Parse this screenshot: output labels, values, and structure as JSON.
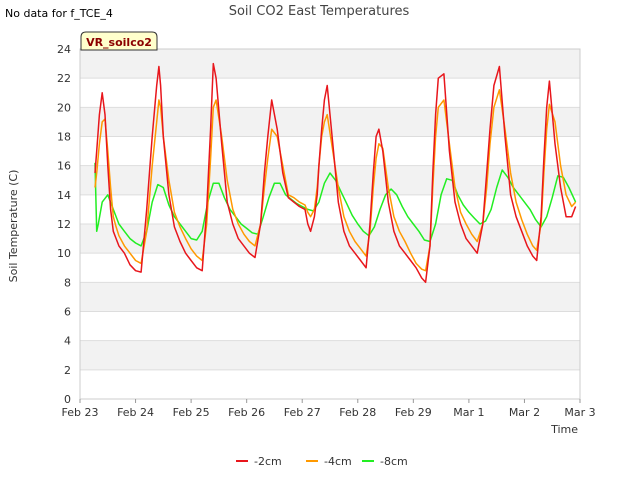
{
  "header": {
    "no_data_note": "No data for f_TCE_4"
  },
  "station_badge": "VR_soilco2",
  "chart_data": {
    "type": "line",
    "title": "Soil CO2 East Temperatures",
    "xlabel": "Time",
    "ylabel": "Soil Temperature (C)",
    "xlim": [
      0,
      9
    ],
    "ylim": [
      0,
      24
    ],
    "yticks": [
      0,
      2,
      4,
      6,
      8,
      10,
      12,
      14,
      16,
      18,
      20,
      22,
      24
    ],
    "xticks": [
      {
        "x": 0,
        "label": "Feb 23"
      },
      {
        "x": 1,
        "label": "Feb 24"
      },
      {
        "x": 2,
        "label": "Feb 25"
      },
      {
        "x": 3,
        "label": "Feb 26"
      },
      {
        "x": 4,
        "label": "Feb 27"
      },
      {
        "x": 5,
        "label": "Feb 28"
      },
      {
        "x": 6,
        "label": "Feb 29"
      },
      {
        "x": 7,
        "label": "Mar 1"
      },
      {
        "x": 8,
        "label": "Mar 2"
      },
      {
        "x": 9,
        "label": "Mar 3"
      }
    ],
    "grid": true,
    "legend_position": "bottom",
    "series": [
      {
        "name": "-2cm",
        "color": "#e8161c",
        "x": [
          0.27,
          0.3,
          0.35,
          0.4,
          0.45,
          0.5,
          0.55,
          0.6,
          0.65,
          0.7,
          0.8,
          0.9,
          1.0,
          1.1,
          1.2,
          1.3,
          1.38,
          1.42,
          1.45,
          1.5,
          1.6,
          1.7,
          1.8,
          1.9,
          2.0,
          2.1,
          2.2,
          2.28,
          2.35,
          2.4,
          2.45,
          2.55,
          2.65,
          2.75,
          2.85,
          2.95,
          3.05,
          3.15,
          3.25,
          3.32,
          3.38,
          3.45,
          3.55,
          3.65,
          3.75,
          3.85,
          3.95,
          4.05,
          4.1,
          4.15,
          4.22,
          4.27,
          4.3,
          4.35,
          4.4,
          4.45,
          4.55,
          4.65,
          4.75,
          4.85,
          4.95,
          5.05,
          5.15,
          5.22,
          5.28,
          5.33,
          5.38,
          5.45,
          5.55,
          5.65,
          5.75,
          5.85,
          5.95,
          6.05,
          6.15,
          6.22,
          6.3,
          6.35,
          6.4,
          6.45,
          6.55,
          6.65,
          6.75,
          6.85,
          6.95,
          7.05,
          7.15,
          7.25,
          7.32,
          7.38,
          7.45,
          7.55,
          7.65,
          7.75,
          7.85,
          7.95,
          8.05,
          8.15,
          8.22,
          8.3,
          8.35,
          8.4,
          8.45,
          8.55,
          8.65,
          8.75,
          8.85,
          8.92
        ],
        "values": [
          15.5,
          17.0,
          19.5,
          21.0,
          19.5,
          16.0,
          13.0,
          11.5,
          11.0,
          10.5,
          10.0,
          9.2,
          8.8,
          8.7,
          13.0,
          18.0,
          21.5,
          22.8,
          21.5,
          18.0,
          14.0,
          11.8,
          10.8,
          10.0,
          9.5,
          9.0,
          8.8,
          13.0,
          18.5,
          23.0,
          22.0,
          17.5,
          13.5,
          12.0,
          11.0,
          10.5,
          10.0,
          9.7,
          12.0,
          15.5,
          18.0,
          20.5,
          18.5,
          15.5,
          13.8,
          13.5,
          13.2,
          13.0,
          12.0,
          11.5,
          12.5,
          14.0,
          16.0,
          18.5,
          20.5,
          21.5,
          17.5,
          13.5,
          11.5,
          10.5,
          10.0,
          9.5,
          9.0,
          12.0,
          15.5,
          18.0,
          18.5,
          17.0,
          13.5,
          11.5,
          10.5,
          10.0,
          9.5,
          9.0,
          8.3,
          8.0,
          10.5,
          15.5,
          19.5,
          22.0,
          22.3,
          17.0,
          13.5,
          12.0,
          11.0,
          10.5,
          10.0,
          12.0,
          15.5,
          18.5,
          21.5,
          22.8,
          18.0,
          14.0,
          12.5,
          11.5,
          10.5,
          9.8,
          9.5,
          12.5,
          16.5,
          20.0,
          21.8,
          17.5,
          14.5,
          12.5,
          12.5,
          13.2
        ]
      },
      {
        "name": "-4cm",
        "color": "#ff9900",
        "x": [
          0.27,
          0.3,
          0.35,
          0.4,
          0.45,
          0.5,
          0.55,
          0.6,
          0.65,
          0.7,
          0.8,
          0.9,
          1.0,
          1.1,
          1.2,
          1.3,
          1.38,
          1.42,
          1.45,
          1.5,
          1.6,
          1.7,
          1.8,
          1.9,
          2.0,
          2.1,
          2.2,
          2.28,
          2.35,
          2.4,
          2.45,
          2.55,
          2.65,
          2.75,
          2.85,
          2.95,
          3.05,
          3.15,
          3.25,
          3.32,
          3.38,
          3.45,
          3.55,
          3.65,
          3.75,
          3.85,
          3.95,
          4.05,
          4.1,
          4.15,
          4.22,
          4.27,
          4.3,
          4.35,
          4.4,
          4.45,
          4.55,
          4.65,
          4.75,
          4.85,
          4.95,
          5.05,
          5.15,
          5.22,
          5.28,
          5.33,
          5.38,
          5.45,
          5.55,
          5.65,
          5.75,
          5.85,
          5.95,
          6.05,
          6.15,
          6.22,
          6.3,
          6.35,
          6.4,
          6.45,
          6.55,
          6.65,
          6.75,
          6.85,
          6.95,
          7.05,
          7.15,
          7.25,
          7.32,
          7.38,
          7.45,
          7.55,
          7.65,
          7.75,
          7.85,
          7.95,
          8.05,
          8.15,
          8.22,
          8.3,
          8.35,
          8.4,
          8.45,
          8.55,
          8.65,
          8.75,
          8.85,
          8.92
        ],
        "values": [
          14.5,
          15.5,
          17.5,
          19.0,
          19.2,
          17.0,
          14.5,
          12.5,
          11.8,
          11.2,
          10.5,
          10.0,
          9.5,
          9.3,
          11.5,
          16.0,
          19.0,
          20.5,
          20.0,
          18.0,
          15.0,
          12.8,
          11.8,
          11.0,
          10.3,
          9.8,
          9.5,
          12.0,
          16.5,
          20.0,
          20.5,
          18.0,
          15.0,
          13.0,
          12.0,
          11.3,
          10.8,
          10.5,
          12.0,
          14.5,
          16.5,
          18.5,
          18.0,
          16.0,
          14.0,
          13.8,
          13.5,
          13.3,
          12.8,
          12.5,
          13.0,
          14.5,
          16.0,
          18.0,
          19.0,
          19.5,
          17.0,
          14.5,
          12.5,
          11.5,
          10.8,
          10.3,
          9.8,
          11.5,
          14.5,
          16.5,
          17.5,
          17.2,
          14.5,
          12.5,
          11.5,
          10.8,
          10.0,
          9.3,
          8.9,
          8.8,
          10.5,
          14.5,
          18.0,
          20.0,
          20.5,
          17.5,
          14.5,
          12.8,
          12.0,
          11.3,
          10.8,
          12.0,
          14.5,
          17.5,
          20.0,
          21.2,
          18.5,
          15.5,
          13.5,
          12.3,
          11.3,
          10.5,
          10.2,
          12.0,
          15.5,
          18.5,
          20.2,
          19.0,
          16.0,
          14.0,
          13.2,
          13.5
        ]
      },
      {
        "name": "-8cm",
        "color": "#22ee22",
        "x": [
          0.27,
          0.3,
          0.33,
          0.4,
          0.5,
          0.6,
          0.7,
          0.8,
          0.9,
          1.0,
          1.1,
          1.2,
          1.3,
          1.4,
          1.5,
          1.6,
          1.7,
          1.8,
          1.9,
          2.0,
          2.1,
          2.2,
          2.3,
          2.4,
          2.5,
          2.6,
          2.7,
          2.8,
          2.9,
          3.0,
          3.1,
          3.2,
          3.3,
          3.4,
          3.5,
          3.6,
          3.7,
          3.8,
          3.9,
          4.0,
          4.1,
          4.2,
          4.3,
          4.4,
          4.5,
          4.6,
          4.7,
          4.8,
          4.9,
          5.0,
          5.1,
          5.2,
          5.3,
          5.4,
          5.5,
          5.6,
          5.7,
          5.8,
          5.9,
          6.0,
          6.1,
          6.2,
          6.3,
          6.4,
          6.5,
          6.6,
          6.7,
          6.8,
          6.9,
          7.0,
          7.1,
          7.2,
          7.3,
          7.4,
          7.5,
          7.6,
          7.7,
          7.8,
          7.9,
          8.0,
          8.1,
          8.2,
          8.3,
          8.4,
          8.5,
          8.6,
          8.7,
          8.8,
          8.92
        ],
        "values": [
          16.2,
          11.5,
          12.0,
          13.5,
          14.0,
          13.0,
          12.0,
          11.5,
          11.0,
          10.7,
          10.5,
          11.5,
          13.5,
          14.7,
          14.5,
          13.3,
          12.5,
          12.0,
          11.5,
          11.0,
          10.9,
          11.5,
          13.5,
          14.8,
          14.8,
          13.8,
          13.0,
          12.5,
          12.0,
          11.7,
          11.4,
          11.3,
          12.5,
          13.8,
          14.8,
          14.8,
          14.0,
          13.7,
          13.4,
          13.2,
          13.0,
          12.9,
          13.5,
          14.8,
          15.5,
          15.0,
          14.2,
          13.4,
          12.6,
          12.0,
          11.5,
          11.2,
          11.8,
          13.0,
          14.0,
          14.4,
          14.0,
          13.2,
          12.5,
          12.0,
          11.5,
          10.9,
          10.8,
          12.0,
          14.0,
          15.1,
          15.0,
          14.0,
          13.3,
          12.8,
          12.4,
          12.0,
          12.2,
          13.0,
          14.5,
          15.7,
          15.2,
          14.5,
          14.0,
          13.5,
          13.0,
          12.3,
          11.8,
          12.5,
          13.8,
          15.3,
          15.2,
          14.5,
          13.5
        ]
      }
    ]
  }
}
